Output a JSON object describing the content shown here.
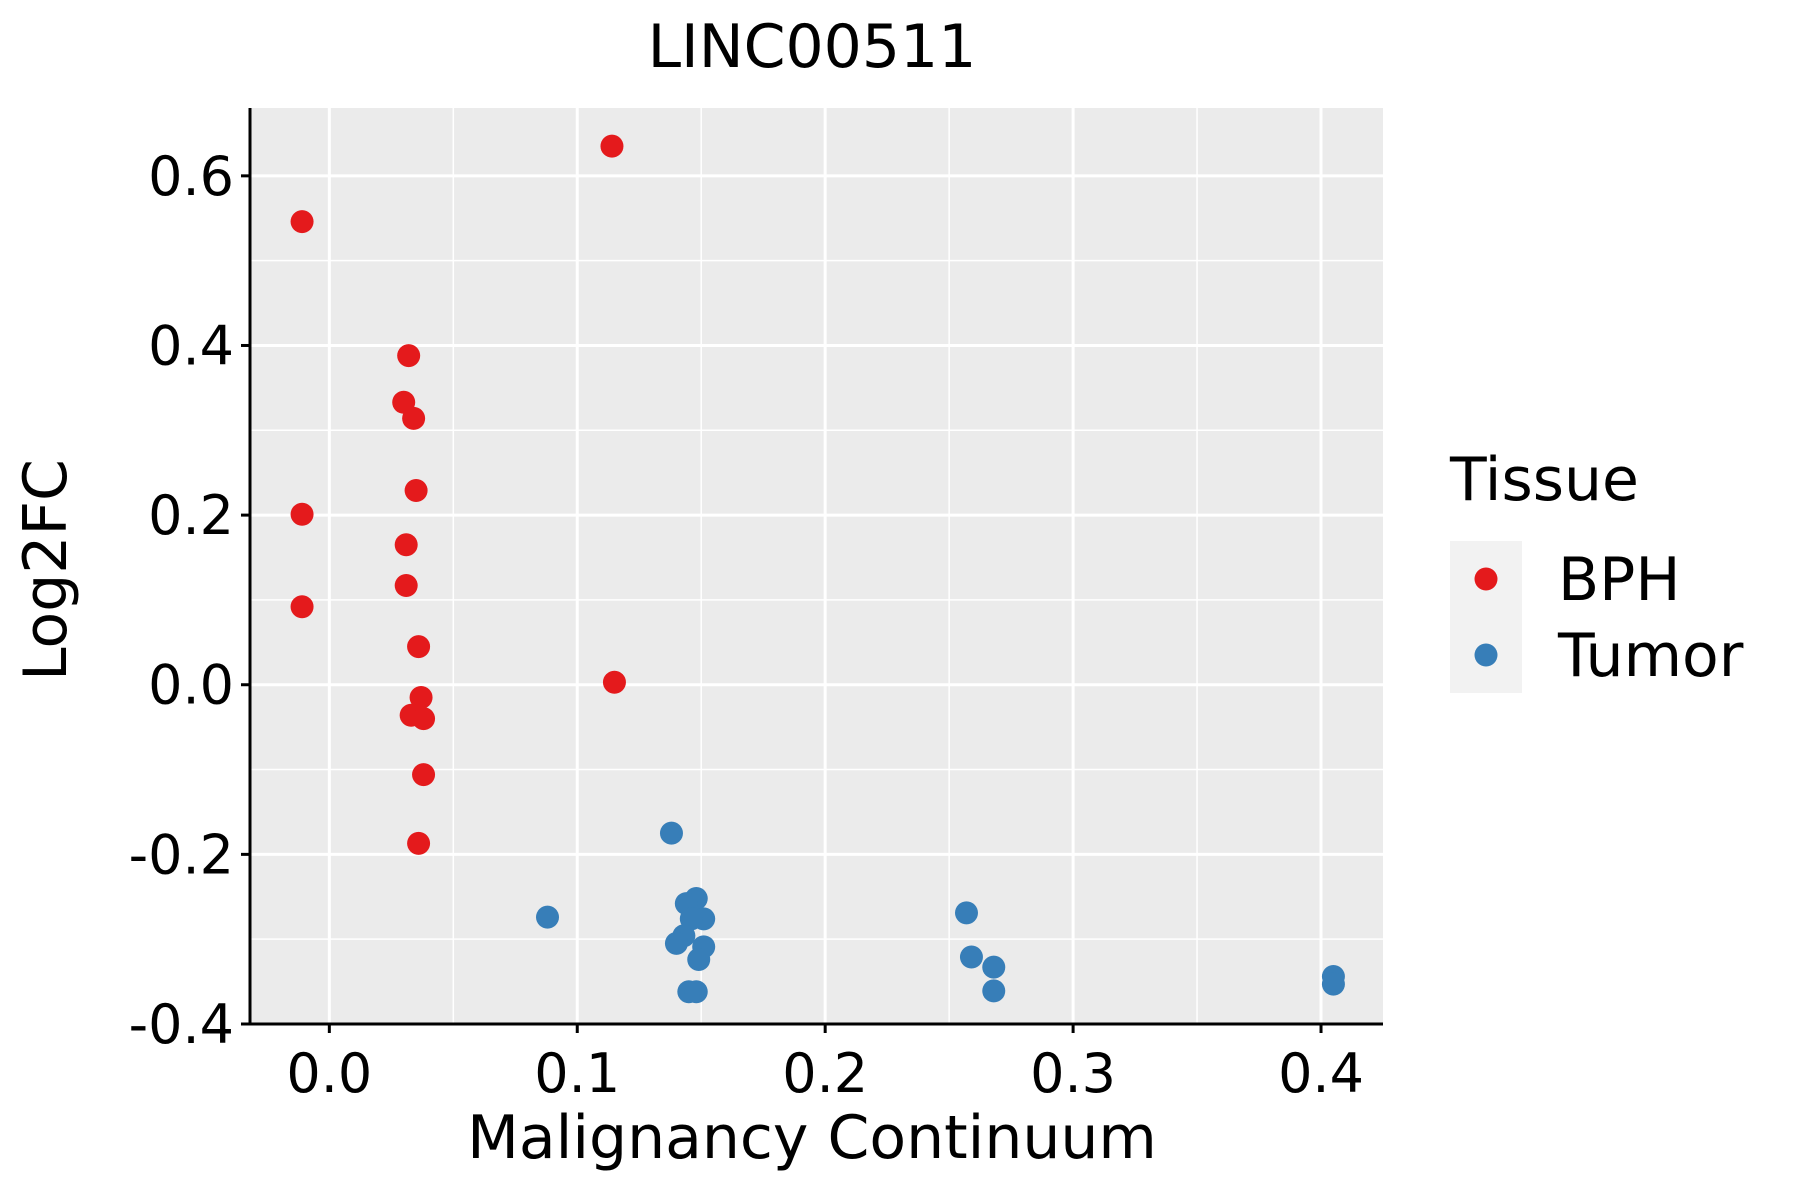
{
  "chart_data": {
    "type": "scatter",
    "title": "LINC00511",
    "xlabel": "Malignancy Continuum",
    "ylabel": "Log2FC",
    "xlim": [
      -0.032,
      0.425
    ],
    "ylim": [
      -0.4,
      0.68
    ],
    "x_ticks": [
      0.0,
      0.1,
      0.2,
      0.3,
      0.4
    ],
    "x_tick_labels": [
      "0.0",
      "0.1",
      "0.2",
      "0.3",
      "0.4"
    ],
    "y_ticks": [
      -0.4,
      -0.2,
      0.0,
      0.2,
      0.4,
      0.6
    ],
    "y_tick_labels": [
      "-0.4",
      "-0.2",
      "0.0",
      "0.2",
      "0.4",
      "0.6"
    ],
    "grid": true,
    "legend": {
      "title": "Tissue",
      "placement": "right"
    },
    "series": [
      {
        "name": "BPH",
        "color": "#E41A1C",
        "points": [
          {
            "x": 0.114,
            "y": 0.635
          },
          {
            "x": -0.011,
            "y": 0.546
          },
          {
            "x": 0.032,
            "y": 0.388
          },
          {
            "x": 0.03,
            "y": 0.333
          },
          {
            "x": 0.034,
            "y": 0.314
          },
          {
            "x": 0.035,
            "y": 0.229
          },
          {
            "x": -0.011,
            "y": 0.201
          },
          {
            "x": 0.031,
            "y": 0.165
          },
          {
            "x": 0.031,
            "y": 0.117
          },
          {
            "x": -0.011,
            "y": 0.092
          },
          {
            "x": 0.036,
            "y": 0.045
          },
          {
            "x": 0.115,
            "y": 0.003
          },
          {
            "x": 0.037,
            "y": -0.015
          },
          {
            "x": 0.033,
            "y": -0.036
          },
          {
            "x": 0.038,
            "y": -0.04
          },
          {
            "x": 0.038,
            "y": -0.106
          },
          {
            "x": 0.036,
            "y": -0.187
          }
        ]
      },
      {
        "name": "Tumor",
        "color": "#377EB8",
        "points": [
          {
            "x": 0.138,
            "y": -0.175
          },
          {
            "x": 0.088,
            "y": -0.274
          },
          {
            "x": 0.148,
            "y": -0.252
          },
          {
            "x": 0.144,
            "y": -0.258
          },
          {
            "x": 0.151,
            "y": -0.276
          },
          {
            "x": 0.146,
            "y": -0.276
          },
          {
            "x": 0.143,
            "y": -0.296
          },
          {
            "x": 0.14,
            "y": -0.305
          },
          {
            "x": 0.151,
            "y": -0.309
          },
          {
            "x": 0.149,
            "y": -0.324
          },
          {
            "x": 0.145,
            "y": -0.362
          },
          {
            "x": 0.148,
            "y": -0.362
          },
          {
            "x": 0.257,
            "y": -0.269
          },
          {
            "x": 0.259,
            "y": -0.321
          },
          {
            "x": 0.268,
            "y": -0.333
          },
          {
            "x": 0.268,
            "y": -0.361
          },
          {
            "x": 0.405,
            "y": -0.344
          },
          {
            "x": 0.405,
            "y": -0.353
          }
        ]
      }
    ]
  }
}
